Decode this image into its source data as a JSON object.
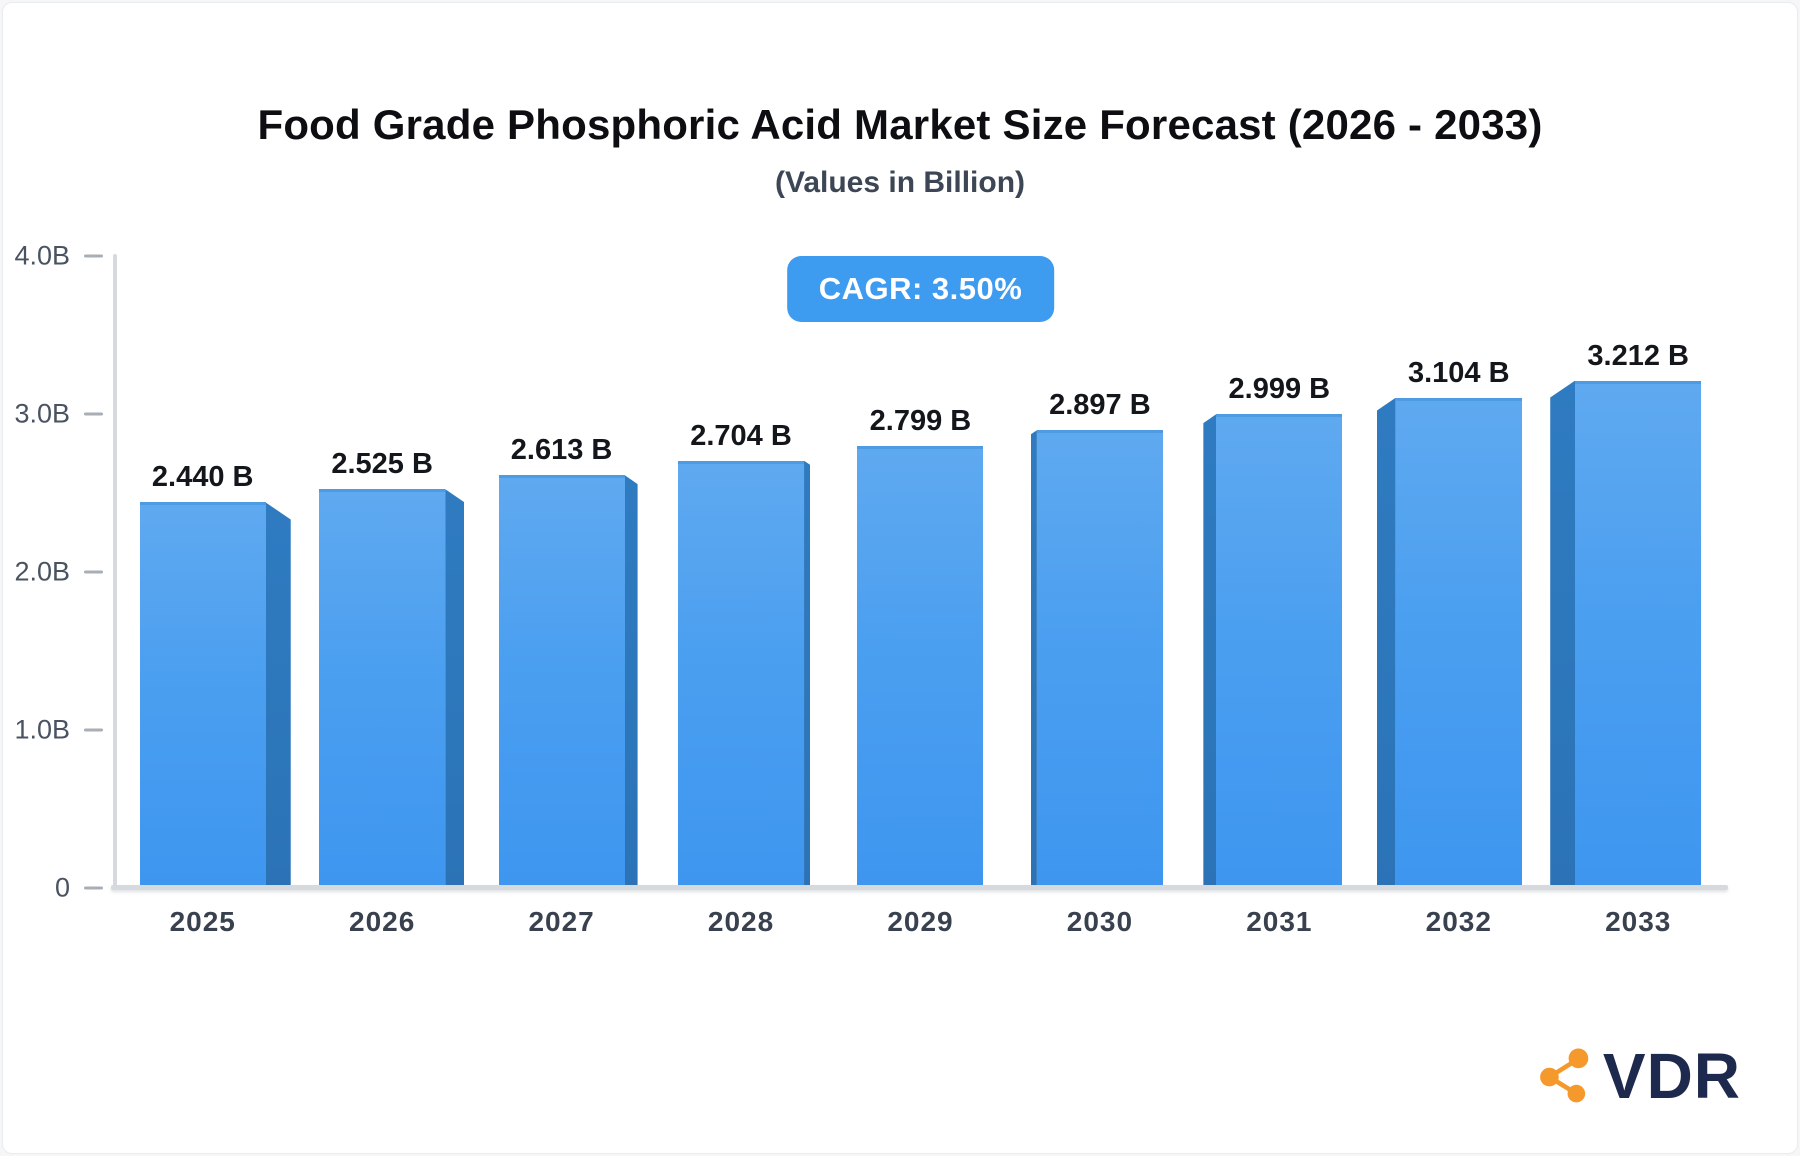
{
  "header": {
    "title": "Food Grade Phosphoric Acid Market Size Forecast (2026 - 2033)",
    "subtitle": "(Values in Billion)",
    "cagr_badge": "CAGR: 3.50%"
  },
  "chart_data": {
    "type": "bar",
    "title": "Food Grade Phosphoric Acid Market Size Forecast (2026 - 2033)",
    "subtitle": "(Values in Billion)",
    "categories": [
      "2025",
      "2026",
      "2027",
      "2028",
      "2029",
      "2030",
      "2031",
      "2032",
      "2033"
    ],
    "values": [
      2.44,
      2.525,
      2.613,
      2.704,
      2.799,
      2.897,
      2.999,
      3.104,
      3.212
    ],
    "value_labels": [
      "2.440 B",
      "2.525 B",
      "2.613 B",
      "2.704 B",
      "2.799 B",
      "2.897 B",
      "2.999 B",
      "3.104 B",
      "3.212 B"
    ],
    "annotation": "CAGR: 3.50%",
    "xlabel": "",
    "ylabel": "",
    "ylim": [
      0,
      4
    ],
    "ytick_values": [
      4,
      3,
      2,
      1,
      0
    ],
    "ytick_labels": [
      "4.0B",
      "3.0B",
      "2.0B",
      "1.0B",
      "0"
    ],
    "grid": "off",
    "legend": "none",
    "bar_style": "3d-perspective, side faces toward center vanishing point",
    "colors": {
      "bar_face_top": "#5fa9f0",
      "bar_face_bottom": "#3e96ef",
      "bar_side": "#2e77bc",
      "bar_top_edge": "#4d9be2",
      "axis_line": "#d6d9de",
      "tick_dash": "#a8aeb6",
      "ytick_text": "#4a5362",
      "xtick_text": "#39414f",
      "value_text": "#13161b",
      "badge_bg": "#3d9bf0",
      "badge_text": "#ffffff"
    }
  },
  "logo": {
    "text": "VDR",
    "icon": "share-nodes-icon",
    "icon_color": "#f6992c",
    "text_color": "#1e2a4d"
  }
}
